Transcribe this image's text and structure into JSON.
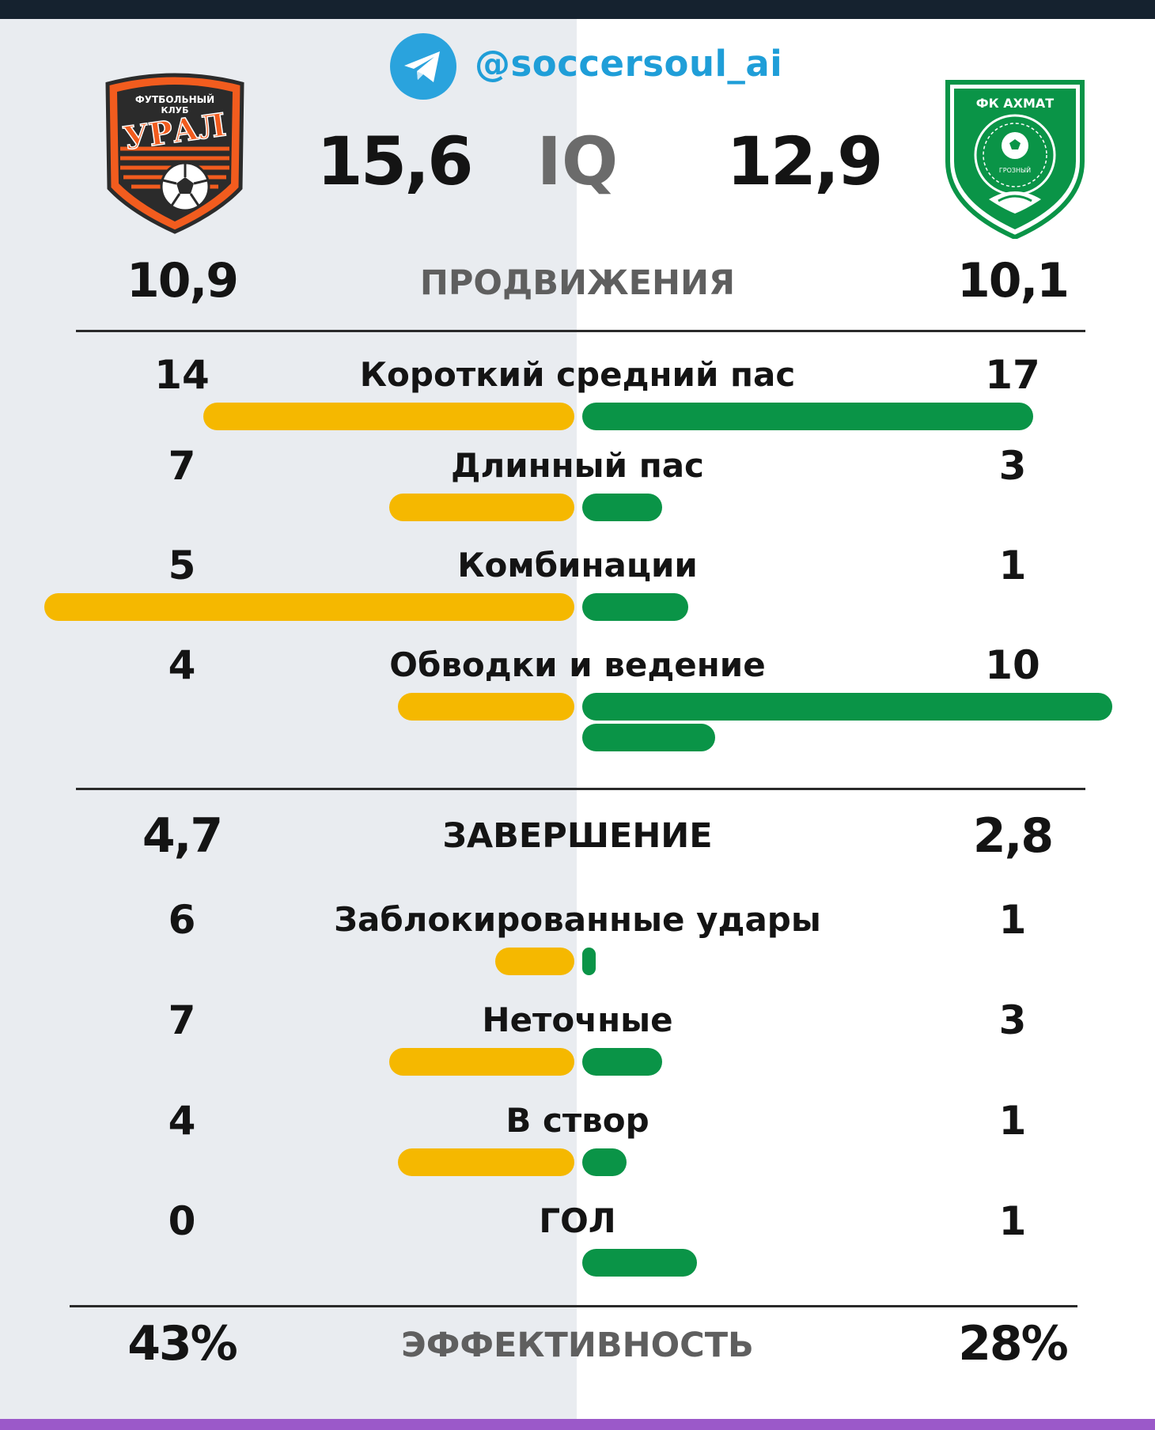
{
  "header": {
    "handle": "@soccersoul_ai",
    "iq_label": "IQ",
    "home": {
      "iq": "15,6",
      "logo_text_top": "ФУТБОЛЬНЫЙ",
      "logo_text_mid": "КЛУБ",
      "logo_text_main": "УРАЛ"
    },
    "away": {
      "iq": "12,9",
      "logo_text_top": "ФК АХМАТ",
      "logo_text_city": "ГРОЗНЫЙ"
    }
  },
  "colors": {
    "home_bar": "#f5b800",
    "away_bar": "#0a9447",
    "telegram": "#1f9ed8",
    "accent_bottom": "#9b59c9"
  },
  "sections": {
    "progress": {
      "label": "ПРОДВИЖЕНИЯ",
      "home": "10,9",
      "away": "10,1"
    },
    "finishing": {
      "label": "ЗАВЕРШЕНИЕ",
      "home": "4,7",
      "away": "2,8"
    },
    "efficiency": {
      "label": "ЭФФЕКТИВНОСТЬ",
      "home": "43%",
      "away": "28%"
    }
  },
  "chart_data": {
    "type": "bar",
    "orientation": "diverging-horizontal",
    "series": [
      {
        "name": "home"
      },
      {
        "name": "away"
      }
    ],
    "groups": [
      {
        "metrics": [
          {
            "label": "Короткий средний пас",
            "home": 14,
            "away": 17,
            "home_bar": 14,
            "away_bar": 17
          },
          {
            "label": "Длинный пас",
            "home": 7,
            "away": 3,
            "home_bar": 7,
            "away_bar": 3
          },
          {
            "label": "Комбинации",
            "home": 5,
            "away": 1,
            "home_bar": 20,
            "away_bar": 4
          },
          {
            "label": "Обводки и ведение",
            "home": 4,
            "away": 10,
            "home_bar": 6.67,
            "away_bar": 20,
            "away_bar_extra": 5
          }
        ]
      },
      {
        "metrics": [
          {
            "label": "Заблокированные удары",
            "home": 6,
            "away": 1,
            "home_bar": 3,
            "away_bar": 0.5
          },
          {
            "label": "Неточные",
            "home": 7,
            "away": 3,
            "home_bar": 7,
            "away_bar": 3
          },
          {
            "label": "В створ",
            "home": 4,
            "away": 1,
            "home_bar": 6.67,
            "away_bar": 1.67
          },
          {
            "label": "ГОЛ",
            "home": 0,
            "away": 1,
            "home_bar": 0,
            "away_bar": 4.33
          }
        ]
      }
    ],
    "bar_scale_max": 20
  }
}
